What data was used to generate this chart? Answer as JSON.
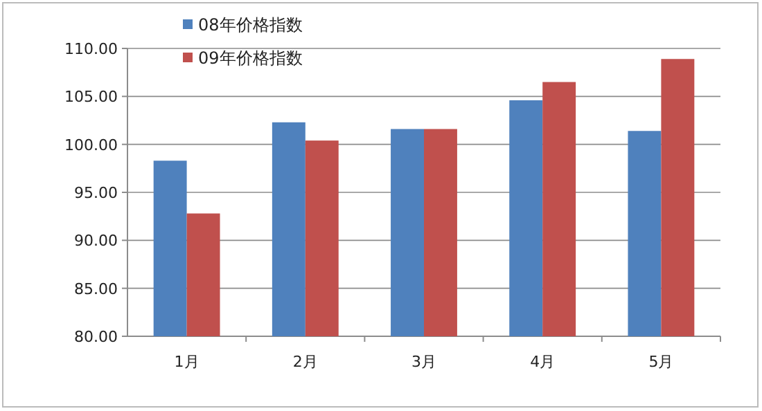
{
  "chart_data": {
    "type": "bar",
    "categories": [
      "1月",
      "2月",
      "3月",
      "4月",
      "5月"
    ],
    "series": [
      {
        "name": "08年价格指数",
        "color": "#4f81bd",
        "values": [
          98.3,
          102.3,
          101.6,
          104.6,
          101.4
        ]
      },
      {
        "name": "09年价格指数",
        "color": "#c0504d",
        "values": [
          92.8,
          100.4,
          101.6,
          106.5,
          108.9
        ]
      }
    ],
    "ylim": [
      80,
      110
    ],
    "yticks": [
      {
        "value": 80,
        "label": "80.00"
      },
      {
        "value": 85,
        "label": "85.00"
      },
      {
        "value": 90,
        "label": "90.00"
      },
      {
        "value": 95,
        "label": "95.00"
      },
      {
        "value": 100,
        "label": "100.00"
      },
      {
        "value": 105,
        "label": "105.00"
      },
      {
        "value": 110,
        "label": "110.00"
      }
    ],
    "grid": "y",
    "legend": "top left"
  }
}
